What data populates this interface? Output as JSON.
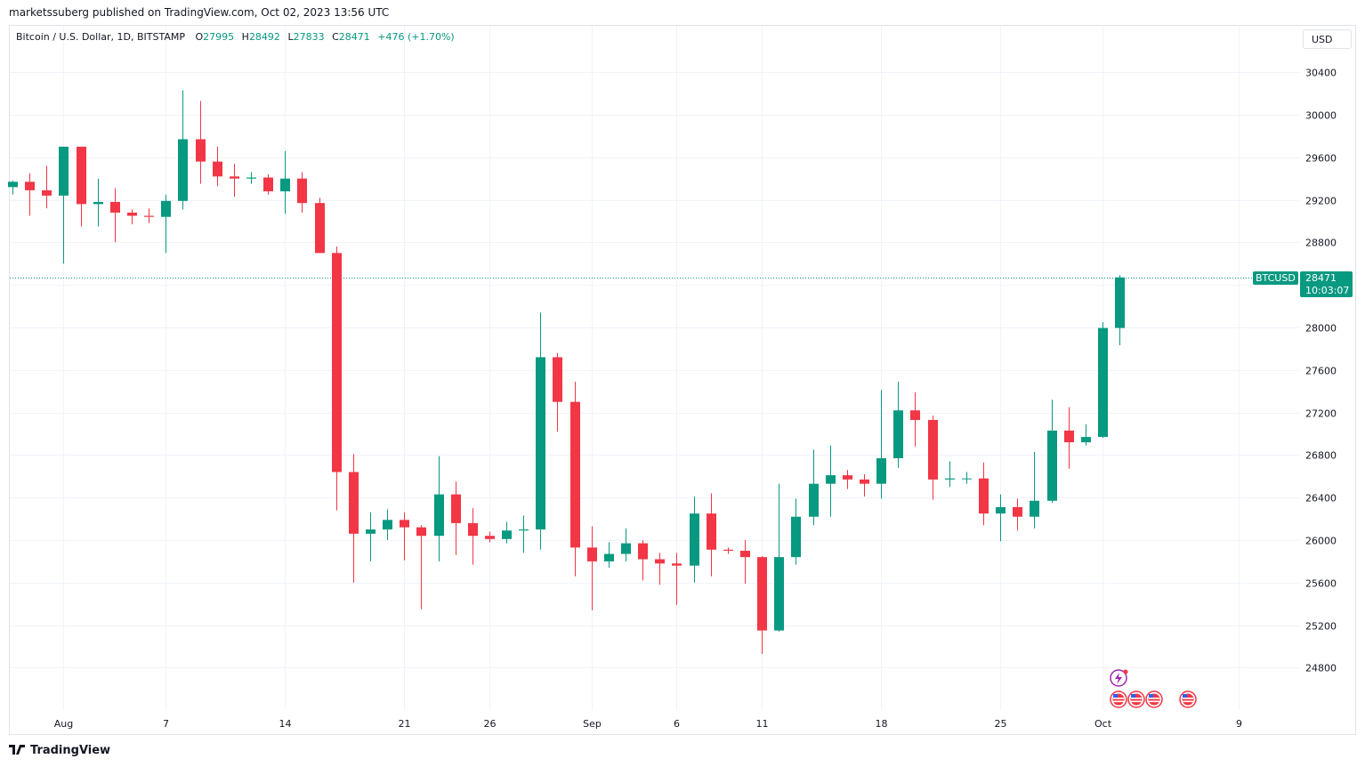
{
  "header": {
    "published_text": "marketssuberg published on TradingView.com, Oct 02, 2023 13:56 UTC"
  },
  "legend": {
    "symbol": "Bitcoin / U.S. Dollar, 1D, BITSTAMP",
    "o_label": "O",
    "o_value": "27995",
    "h_label": "H",
    "h_value": "28492",
    "l_label": "L",
    "l_value": "27833",
    "c_label": "C",
    "c_value": "28471",
    "change": "+476 (+1.70%)"
  },
  "currency_button": "USD",
  "price_tag": {
    "symbol": "BTCUSD",
    "price": "28471",
    "countdown": "10:03:07"
  },
  "footer": {
    "logo_text": "TradingView"
  },
  "colors": {
    "up": "#089981",
    "down": "#f23645",
    "grid": "#f0f3fa",
    "axis_text": "#131722",
    "event_icon": "#9c27b0"
  },
  "icons": [
    "events-lightning-icon",
    "us-flag-icon"
  ],
  "chart_data": {
    "type": "candlestick",
    "symbol": "BTCUSD",
    "interval": "1D",
    "ylim": [
      24500,
      30700
    ],
    "y_ticks": [
      24800,
      25200,
      25600,
      26000,
      26400,
      26800,
      27200,
      27600,
      28000,
      28400,
      28800,
      29200,
      29600,
      30000,
      30400
    ],
    "x_ticks": [
      "Aug",
      "7",
      "14",
      "21",
      "26",
      "Sep",
      "6",
      "11",
      "18",
      "25",
      "Oct",
      "9"
    ],
    "x_tick_dates": [
      "2023-08-01",
      "2023-08-07",
      "2023-08-14",
      "2023-08-21",
      "2023-08-26",
      "2023-09-01",
      "2023-09-06",
      "2023-09-11",
      "2023-09-18",
      "2023-09-25",
      "2023-10-01",
      "2023-10-09"
    ],
    "current_price": 28471,
    "grid": true,
    "candles": [
      {
        "date": "2023-07-29",
        "o": 29320,
        "h": 29380,
        "l": 29250,
        "c": 29370
      },
      {
        "date": "2023-07-30",
        "o": 29370,
        "h": 29450,
        "l": 29050,
        "c": 29290
      },
      {
        "date": "2023-07-31",
        "o": 29290,
        "h": 29520,
        "l": 29120,
        "c": 29240
      },
      {
        "date": "2023-08-01",
        "o": 29240,
        "h": 29700,
        "l": 28600,
        "c": 29700
      },
      {
        "date": "2023-08-02",
        "o": 29700,
        "h": 29700,
        "l": 28950,
        "c": 29160
      },
      {
        "date": "2023-08-03",
        "o": 29160,
        "h": 29400,
        "l": 28950,
        "c": 29180
      },
      {
        "date": "2023-08-04",
        "o": 29180,
        "h": 29310,
        "l": 28800,
        "c": 29080
      },
      {
        "date": "2023-08-05",
        "o": 29080,
        "h": 29110,
        "l": 28970,
        "c": 29050
      },
      {
        "date": "2023-08-06",
        "o": 29050,
        "h": 29120,
        "l": 28980,
        "c": 29040
      },
      {
        "date": "2023-08-07",
        "o": 29040,
        "h": 29250,
        "l": 28700,
        "c": 29190
      },
      {
        "date": "2023-08-08",
        "o": 29190,
        "h": 30230,
        "l": 29110,
        "c": 29770
      },
      {
        "date": "2023-08-09",
        "o": 29770,
        "h": 30130,
        "l": 29350,
        "c": 29560
      },
      {
        "date": "2023-08-10",
        "o": 29560,
        "h": 29700,
        "l": 29330,
        "c": 29420
      },
      {
        "date": "2023-08-11",
        "o": 29420,
        "h": 29540,
        "l": 29230,
        "c": 29400
      },
      {
        "date": "2023-08-12",
        "o": 29400,
        "h": 29460,
        "l": 29350,
        "c": 29410
      },
      {
        "date": "2023-08-13",
        "o": 29410,
        "h": 29440,
        "l": 29250,
        "c": 29280
      },
      {
        "date": "2023-08-14",
        "o": 29280,
        "h": 29660,
        "l": 29070,
        "c": 29400
      },
      {
        "date": "2023-08-15",
        "o": 29400,
        "h": 29460,
        "l": 29080,
        "c": 29170
      },
      {
        "date": "2023-08-16",
        "o": 29170,
        "h": 29220,
        "l": 28700,
        "c": 28700
      },
      {
        "date": "2023-08-17",
        "o": 28700,
        "h": 28760,
        "l": 26280,
        "c": 26640
      },
      {
        "date": "2023-08-18",
        "o": 26640,
        "h": 26810,
        "l": 25600,
        "c": 26060
      },
      {
        "date": "2023-08-19",
        "o": 26060,
        "h": 26260,
        "l": 25800,
        "c": 26100
      },
      {
        "date": "2023-08-20",
        "o": 26100,
        "h": 26290,
        "l": 26000,
        "c": 26190
      },
      {
        "date": "2023-08-21",
        "o": 26190,
        "h": 26260,
        "l": 25810,
        "c": 26120
      },
      {
        "date": "2023-08-22",
        "o": 26120,
        "h": 26140,
        "l": 25350,
        "c": 26040
      },
      {
        "date": "2023-08-23",
        "o": 26040,
        "h": 26790,
        "l": 25800,
        "c": 26430
      },
      {
        "date": "2023-08-24",
        "o": 26430,
        "h": 26550,
        "l": 25860,
        "c": 26160
      },
      {
        "date": "2023-08-25",
        "o": 26160,
        "h": 26300,
        "l": 25770,
        "c": 26040
      },
      {
        "date": "2023-08-26",
        "o": 26040,
        "h": 26080,
        "l": 25980,
        "c": 26010
      },
      {
        "date": "2023-08-27",
        "o": 26010,
        "h": 26170,
        "l": 25970,
        "c": 26090
      },
      {
        "date": "2023-08-28",
        "o": 26090,
        "h": 26230,
        "l": 25880,
        "c": 26100
      },
      {
        "date": "2023-08-29",
        "o": 26100,
        "h": 28140,
        "l": 25910,
        "c": 27720
      },
      {
        "date": "2023-08-30",
        "o": 27720,
        "h": 27760,
        "l": 27020,
        "c": 27300
      },
      {
        "date": "2023-08-31",
        "o": 27300,
        "h": 27490,
        "l": 25660,
        "c": 25930
      },
      {
        "date": "2023-09-01",
        "o": 25930,
        "h": 26130,
        "l": 25340,
        "c": 25800
      },
      {
        "date": "2023-09-02",
        "o": 25800,
        "h": 25980,
        "l": 25740,
        "c": 25870
      },
      {
        "date": "2023-09-03",
        "o": 25870,
        "h": 26110,
        "l": 25800,
        "c": 25970
      },
      {
        "date": "2023-09-04",
        "o": 25970,
        "h": 26000,
        "l": 25620,
        "c": 25820
      },
      {
        "date": "2023-09-05",
        "o": 25820,
        "h": 25880,
        "l": 25580,
        "c": 25780
      },
      {
        "date": "2023-09-06",
        "o": 25780,
        "h": 25880,
        "l": 25390,
        "c": 25760
      },
      {
        "date": "2023-09-07",
        "o": 25760,
        "h": 26410,
        "l": 25600,
        "c": 26250
      },
      {
        "date": "2023-09-08",
        "o": 26250,
        "h": 26440,
        "l": 25660,
        "c": 25910
      },
      {
        "date": "2023-09-09",
        "o": 25910,
        "h": 25930,
        "l": 25870,
        "c": 25900
      },
      {
        "date": "2023-09-10",
        "o": 25900,
        "h": 26000,
        "l": 25590,
        "c": 25840
      },
      {
        "date": "2023-09-11",
        "o": 25840,
        "h": 25850,
        "l": 24930,
        "c": 25150
      },
      {
        "date": "2023-09-12",
        "o": 25150,
        "h": 26530,
        "l": 25140,
        "c": 25840
      },
      {
        "date": "2023-09-13",
        "o": 25840,
        "h": 26390,
        "l": 25770,
        "c": 26220
      },
      {
        "date": "2023-09-14",
        "o": 26220,
        "h": 26850,
        "l": 26140,
        "c": 26530
      },
      {
        "date": "2023-09-15",
        "o": 26530,
        "h": 26890,
        "l": 26220,
        "c": 26610
      },
      {
        "date": "2023-09-16",
        "o": 26610,
        "h": 26660,
        "l": 26480,
        "c": 26570
      },
      {
        "date": "2023-09-17",
        "o": 26570,
        "h": 26620,
        "l": 26410,
        "c": 26530
      },
      {
        "date": "2023-09-18",
        "o": 26530,
        "h": 27410,
        "l": 26390,
        "c": 26770
      },
      {
        "date": "2023-09-19",
        "o": 26770,
        "h": 27490,
        "l": 26680,
        "c": 27220
      },
      {
        "date": "2023-09-20",
        "o": 27220,
        "h": 27390,
        "l": 26880,
        "c": 27130
      },
      {
        "date": "2023-09-21",
        "o": 27130,
        "h": 27170,
        "l": 26380,
        "c": 26570
      },
      {
        "date": "2023-09-22",
        "o": 26570,
        "h": 26740,
        "l": 26500,
        "c": 26580
      },
      {
        "date": "2023-09-23",
        "o": 26580,
        "h": 26640,
        "l": 26530,
        "c": 26580
      },
      {
        "date": "2023-09-24",
        "o": 26580,
        "h": 26730,
        "l": 26140,
        "c": 26250
      },
      {
        "date": "2023-09-25",
        "o": 26250,
        "h": 26430,
        "l": 25990,
        "c": 26310
      },
      {
        "date": "2023-09-26",
        "o": 26310,
        "h": 26390,
        "l": 26090,
        "c": 26220
      },
      {
        "date": "2023-09-27",
        "o": 26220,
        "h": 26830,
        "l": 26110,
        "c": 26370
      },
      {
        "date": "2023-09-28",
        "o": 26370,
        "h": 27320,
        "l": 26350,
        "c": 27030
      },
      {
        "date": "2023-09-29",
        "o": 27030,
        "h": 27250,
        "l": 26670,
        "c": 26920
      },
      {
        "date": "2023-09-30",
        "o": 26920,
        "h": 27090,
        "l": 26890,
        "c": 26970
      },
      {
        "date": "2023-10-01",
        "o": 26970,
        "h": 28050,
        "l": 26960,
        "c": 27995
      },
      {
        "date": "2023-10-02",
        "o": 27995,
        "h": 28492,
        "l": 27833,
        "c": 28471
      }
    ]
  }
}
